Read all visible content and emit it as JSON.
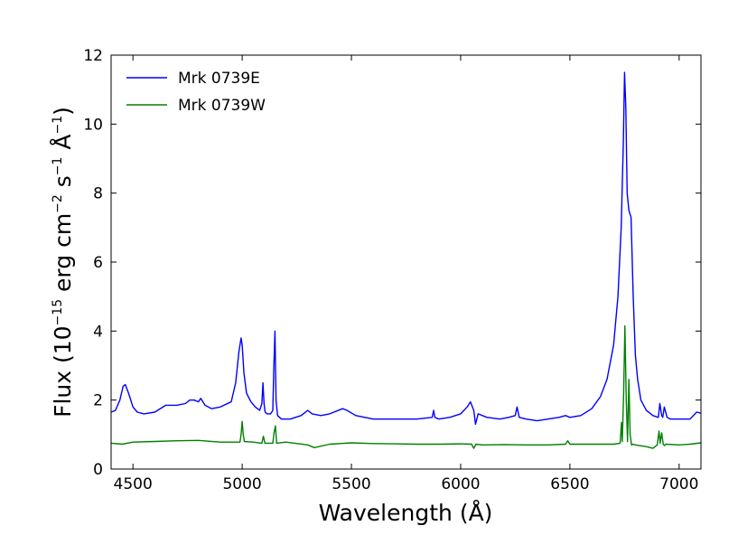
{
  "chart_data": {
    "type": "line",
    "title": "",
    "xlabel": "Wavelength (Å)",
    "ylabel": {
      "flux": "Flux (10",
      "exp15": "−15",
      "erg": " erg cm",
      "exp2": "−2",
      "s": " s",
      "exp1a": "−1",
      "ang": " Å",
      "exp1b": "−1",
      "close": ")"
    },
    "xlim": [
      4400,
      7100
    ],
    "ylim": [
      0,
      12
    ],
    "xticks": [
      4500,
      5000,
      5500,
      6000,
      6500,
      7000
    ],
    "yticks": [
      0,
      2,
      4,
      6,
      8,
      10,
      12
    ],
    "legend_position": "upper-left",
    "series": [
      {
        "name": "Mrk 0739E",
        "color": "#0000ff",
        "x": [
          4400,
          4420,
          4440,
          4455,
          4465,
          4480,
          4500,
          4520,
          4550,
          4600,
          4650,
          4700,
          4740,
          4760,
          4780,
          4800,
          4810,
          4830,
          4860,
          4900,
          4950,
          4970,
          4985,
          4995,
          5000,
          5008,
          5020,
          5040,
          5060,
          5080,
          5090,
          5095,
          5100,
          5105,
          5115,
          5130,
          5140,
          5145,
          5150,
          5155,
          5162,
          5180,
          5220,
          5270,
          5300,
          5320,
          5360,
          5400,
          5460,
          5480,
          5520,
          5600,
          5700,
          5800,
          5870,
          5876,
          5882,
          5900,
          5950,
          6000,
          6030,
          6045,
          6060,
          6068,
          6080,
          6120,
          6180,
          6220,
          6250,
          6258,
          6268,
          6300,
          6350,
          6400,
          6450,
          6480,
          6500,
          6550,
          6600,
          6640,
          6670,
          6700,
          6720,
          6735,
          6745,
          6750,
          6756,
          6762,
          6770,
          6780,
          6790,
          6800,
          6810,
          6825,
          6850,
          6880,
          6905,
          6912,
          6920,
          6925,
          6932,
          6945,
          6960,
          7000,
          7050,
          7080,
          7100
        ],
        "values": [
          1.65,
          1.7,
          2.0,
          2.4,
          2.45,
          2.2,
          1.8,
          1.65,
          1.6,
          1.65,
          1.85,
          1.85,
          1.9,
          2.0,
          2.0,
          1.95,
          2.05,
          1.85,
          1.75,
          1.8,
          1.95,
          2.5,
          3.4,
          3.8,
          3.6,
          2.8,
          2.2,
          1.95,
          1.8,
          1.7,
          1.9,
          2.5,
          1.9,
          1.65,
          1.6,
          1.6,
          1.7,
          3.0,
          4.0,
          2.0,
          1.55,
          1.45,
          1.45,
          1.55,
          1.7,
          1.6,
          1.55,
          1.6,
          1.75,
          1.7,
          1.55,
          1.45,
          1.45,
          1.45,
          1.5,
          1.7,
          1.5,
          1.45,
          1.5,
          1.6,
          1.8,
          1.95,
          1.7,
          1.3,
          1.6,
          1.5,
          1.45,
          1.5,
          1.55,
          1.8,
          1.5,
          1.45,
          1.4,
          1.45,
          1.5,
          1.55,
          1.5,
          1.55,
          1.75,
          2.1,
          2.6,
          3.6,
          5.0,
          7.0,
          9.5,
          11.5,
          10.5,
          8.0,
          7.5,
          7.3,
          5.0,
          3.3,
          2.6,
          2.0,
          1.7,
          1.55,
          1.5,
          1.9,
          1.55,
          1.5,
          1.8,
          1.5,
          1.45,
          1.45,
          1.45,
          1.65,
          1.62
        ]
      },
      {
        "name": "Mrk 0739W",
        "color": "#008000",
        "x": [
          4400,
          4450,
          4500,
          4600,
          4700,
          4800,
          4900,
          4990,
          4995,
          5000,
          5005,
          5010,
          5050,
          5090,
          5097,
          5104,
          5140,
          5146,
          5152,
          5158,
          5200,
          5300,
          5330,
          5400,
          5500,
          5600,
          5700,
          5800,
          5900,
          6000,
          6050,
          6060,
          6070,
          6100,
          6200,
          6300,
          6400,
          6480,
          6490,
          6500,
          6600,
          6700,
          6730,
          6736,
          6740,
          6746,
          6752,
          6758,
          6764,
          6770,
          6776,
          6782,
          6790,
          6800,
          6850,
          6880,
          6900,
          6908,
          6913,
          6920,
          6927,
          6933,
          6940,
          7000,
          7050,
          7100
        ],
        "values": [
          0.75,
          0.72,
          0.78,
          0.8,
          0.82,
          0.83,
          0.78,
          0.78,
          1.0,
          1.38,
          1.0,
          0.8,
          0.78,
          0.75,
          0.95,
          0.75,
          0.75,
          1.05,
          1.25,
          0.75,
          0.78,
          0.7,
          0.62,
          0.72,
          0.76,
          0.74,
          0.73,
          0.72,
          0.72,
          0.73,
          0.72,
          0.6,
          0.72,
          0.7,
          0.71,
          0.7,
          0.7,
          0.72,
          0.82,
          0.72,
          0.72,
          0.72,
          0.75,
          1.35,
          0.8,
          2.2,
          4.15,
          2.0,
          0.8,
          2.6,
          1.0,
          0.7,
          0.72,
          0.7,
          0.65,
          0.6,
          0.7,
          1.1,
          0.75,
          1.05,
          0.72,
          0.68,
          0.72,
          0.7,
          0.72,
          0.76
        ]
      }
    ]
  }
}
